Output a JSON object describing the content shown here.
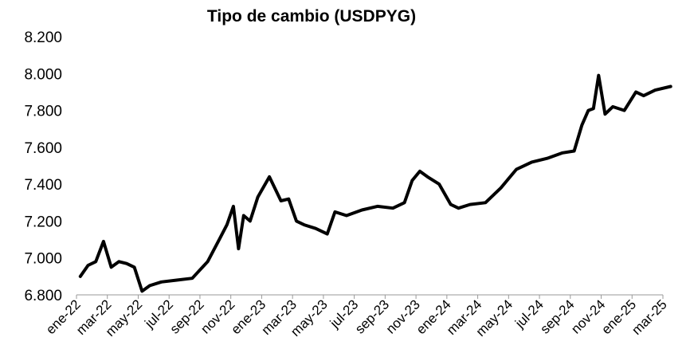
{
  "chart_data": {
    "type": "line",
    "title": "Tipo de cambio (USDPYG)",
    "xlabel": "",
    "ylabel": "",
    "ylim": [
      6800,
      8200
    ],
    "grid": false,
    "legend": "none",
    "y_tick_labels": [
      "6.800",
      "7.000",
      "7.200",
      "7.400",
      "7.600",
      "7.800",
      "8.000",
      "8.200"
    ],
    "y_tick_values": [
      6800,
      7000,
      7200,
      7400,
      7600,
      7800,
      8000,
      8200
    ],
    "x_tick_labels": [
      "ene-22",
      "mar-22",
      "may-22",
      "jul-22",
      "sep-22",
      "nov-22",
      "ene-23",
      "mar-23",
      "may-23",
      "jul-23",
      "sep-23",
      "nov-23",
      "ene-24",
      "mar-24",
      "may-24",
      "jul-24",
      "sep-24",
      "nov-24",
      "ene-25",
      "mar-25"
    ],
    "series": [
      {
        "color": "#000000",
        "x": [
          "2022-01",
          "2022-01",
          "2022-02",
          "2022-02",
          "2022-03",
          "2022-03",
          "2022-04",
          "2022-04",
          "2022-05",
          "2022-05",
          "2022-06",
          "2022-07",
          "2022-08",
          "2022-09",
          "2022-10",
          "2022-10",
          "2022-11",
          "2022-11",
          "2022-11",
          "2022-12",
          "2022-12",
          "2023-01",
          "2023-02",
          "2023-02",
          "2023-03",
          "2023-03",
          "2023-04",
          "2023-05",
          "2023-05",
          "2023-06",
          "2023-07",
          "2023-08",
          "2023-09",
          "2023-10",
          "2023-10",
          "2023-11",
          "2023-11",
          "2023-12",
          "2024-01",
          "2024-01",
          "2024-02",
          "2024-03",
          "2024-04",
          "2024-05",
          "2024-06",
          "2024-07",
          "2024-08",
          "2024-09",
          "2024-09",
          "2024-10",
          "2024-10",
          "2024-10",
          "2024-11",
          "2024-11",
          "2024-12",
          "2025-01",
          "2025-01",
          "2025-02",
          "2025-03"
        ],
        "values": [
          6900,
          6960,
          6980,
          7090,
          6950,
          6980,
          6970,
          6950,
          6820,
          6850,
          6870,
          6880,
          6890,
          6980,
          7100,
          7180,
          7280,
          7050,
          7230,
          7200,
          7330,
          7440,
          7310,
          7320,
          7200,
          7180,
          7160,
          7130,
          7250,
          7230,
          7260,
          7280,
          7270,
          7300,
          7420,
          7470,
          7440,
          7400,
          7290,
          7270,
          7290,
          7300,
          7380,
          7480,
          7520,
          7540,
          7570,
          7580,
          7720,
          7800,
          7810,
          7990,
          7780,
          7820,
          7800,
          7900,
          7880,
          7910,
          7930
        ]
      }
    ]
  }
}
